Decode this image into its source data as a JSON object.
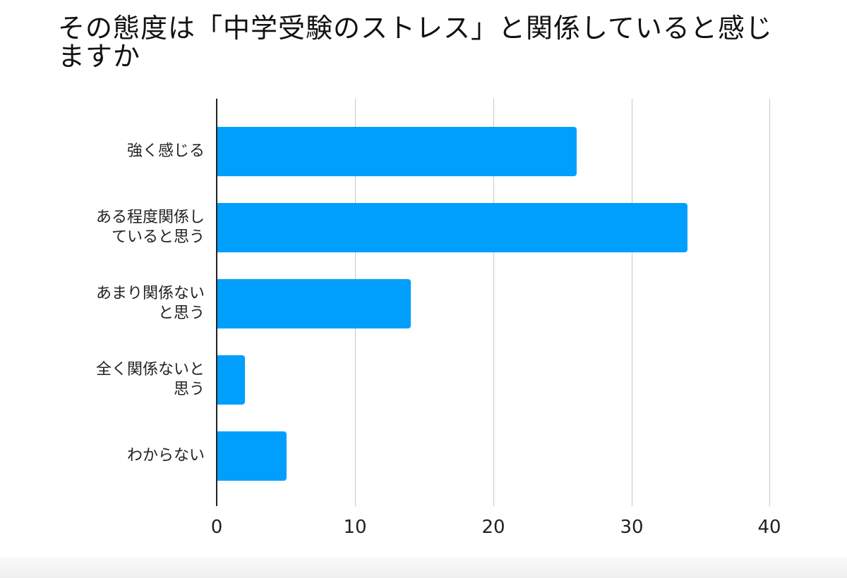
{
  "chart_data": {
    "type": "bar",
    "orientation": "horizontal",
    "title": "その態度は「中学受験のストレス」と関係していると感じますか",
    "categories": [
      "強く感じる",
      "ある程度関係していると思う",
      "あまり関係ないと思う",
      "全く関係ないと思う",
      "わからない"
    ],
    "category_display": [
      "強く感じる",
      "ある程度関係し\nていると思う",
      "あまり関係ない\nと思う",
      "全く関係ないと\n思う",
      "わからない"
    ],
    "values": [
      26,
      34,
      14,
      2,
      5
    ],
    "xlabel": "",
    "ylabel": "",
    "xlim": [
      0,
      40
    ],
    "xticks": [
      "0",
      "10",
      "20",
      "30",
      "40"
    ],
    "grid": true,
    "legend": null,
    "bar_color": "#009ffd"
  }
}
